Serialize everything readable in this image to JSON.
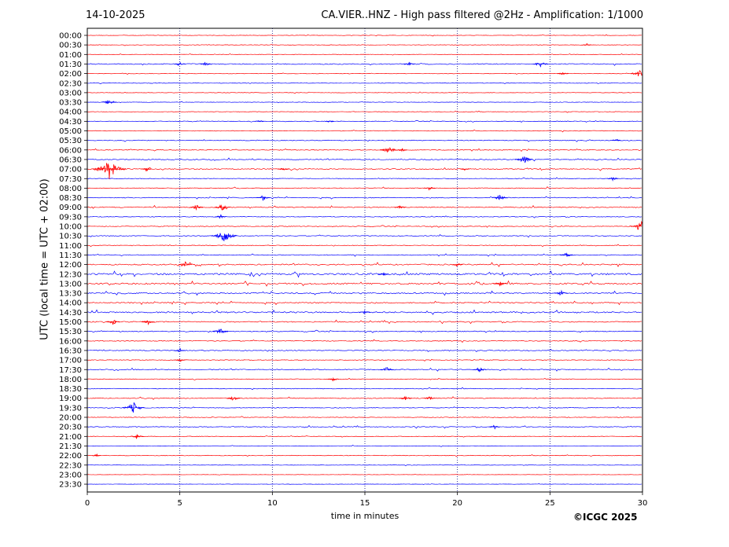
{
  "header": {
    "date": "14-10-2025",
    "title": "CA.VIER..HNZ - High pass filtered @2Hz - Amplification: 1/1000"
  },
  "footer": {
    "copyright": "©ICGC 2025"
  },
  "colors": {
    "trace_a": "#ff0000",
    "trace_b": "#0000ff",
    "grid": "#000080",
    "axis": "#000000"
  },
  "chart_data": {
    "type": "line",
    "xlabel": "time in minutes",
    "ylabel": "UTC (local time = UTC + 02:00)",
    "xlim": [
      0,
      30
    ],
    "xticks": [
      0,
      5,
      10,
      15,
      20,
      25,
      30
    ],
    "grid": "vertical dotted at each x tick",
    "rows": [
      "00:00",
      "00:30",
      "01:00",
      "01:30",
      "02:00",
      "02:30",
      "03:00",
      "03:30",
      "04:00",
      "04:30",
      "05:00",
      "05:30",
      "06:00",
      "06:30",
      "07:00",
      "07:30",
      "08:00",
      "08:30",
      "09:00",
      "09:30",
      "10:00",
      "10:30",
      "11:00",
      "11:30",
      "12:00",
      "12:30",
      "13:00",
      "13:30",
      "14:00",
      "14:30",
      "15:00",
      "15:30",
      "16:00",
      "16:30",
      "17:00",
      "17:30",
      "18:00",
      "18:30",
      "19:00",
      "19:30",
      "20:00",
      "20:30",
      "21:00",
      "21:30",
      "22:00",
      "22:30",
      "23:00",
      "23:30"
    ],
    "row_colors": [
      "red",
      "red",
      "red",
      "blue",
      "red",
      "blue",
      "red",
      "blue",
      "red",
      "blue",
      "red",
      "blue",
      "red",
      "blue",
      "red",
      "blue",
      "red",
      "blue",
      "red",
      "blue",
      "red",
      "blue",
      "red",
      "blue",
      "red",
      "blue",
      "red",
      "blue",
      "red",
      "blue",
      "red",
      "blue",
      "red",
      "blue",
      "red",
      "blue",
      "red",
      "blue",
      "red",
      "blue",
      "red",
      "blue",
      "red",
      "blue",
      "red",
      "blue",
      "red",
      "blue"
    ],
    "noise_level": [
      0.6,
      0.6,
      0.6,
      1.2,
      0.7,
      0.6,
      0.6,
      0.6,
      0.6,
      0.8,
      0.8,
      1,
      1,
      1.1,
      1.2,
      0.8,
      1,
      1,
      1.3,
      0.8,
      0.9,
      1,
      0.9,
      1,
      1.5,
      2.2,
      2,
      1.6,
      1.4,
      1.8,
      1.3,
      1.1,
      1,
      1,
      0.8,
      1.1,
      0.8,
      0.9,
      1.1,
      0.8,
      0.8,
      1,
      0.7,
      0.6,
      0.8,
      0.5,
      0.4,
      0.4
    ],
    "events": [
      {
        "row": "00:30",
        "minute": 27.0,
        "amplitude": 2
      },
      {
        "row": "01:30",
        "minute": 5.0,
        "amplitude": 3
      },
      {
        "row": "01:30",
        "minute": 6.4,
        "amplitude": 3
      },
      {
        "row": "01:30",
        "minute": 17.4,
        "amplitude": 3
      },
      {
        "row": "01:30",
        "minute": 24.5,
        "amplitude": 5
      },
      {
        "row": "02:00",
        "minute": 25.7,
        "amplitude": 3
      },
      {
        "row": "02:00",
        "minute": 29.9,
        "amplitude": 7
      },
      {
        "row": "03:30",
        "minute": 1.2,
        "amplitude": 5
      },
      {
        "row": "04:30",
        "minute": 9.3,
        "amplitude": 2
      },
      {
        "row": "04:30",
        "minute": 13.1,
        "amplitude": 2
      },
      {
        "row": "05:30",
        "minute": 28.6,
        "amplitude": 2
      },
      {
        "row": "06:00",
        "minute": 16.3,
        "amplitude": 6
      },
      {
        "row": "06:00",
        "minute": 17.0,
        "amplitude": 3
      },
      {
        "row": "06:30",
        "minute": 23.6,
        "amplitude": 6
      },
      {
        "row": "07:00",
        "minute": 1.2,
        "amplitude": 13
      },
      {
        "row": "07:00",
        "minute": 3.2,
        "amplitude": 3
      },
      {
        "row": "07:00",
        "minute": 10.6,
        "amplitude": 3
      },
      {
        "row": "07:00",
        "minute": 20.4,
        "amplitude": 2
      },
      {
        "row": "07:30",
        "minute": 28.4,
        "amplitude": 3
      },
      {
        "row": "08:00",
        "minute": 18.5,
        "amplitude": 3
      },
      {
        "row": "08:30",
        "minute": 9.5,
        "amplitude": 4
      },
      {
        "row": "08:30",
        "minute": 22.3,
        "amplitude": 5
      },
      {
        "row": "09:00",
        "minute": 5.9,
        "amplitude": 4
      },
      {
        "row": "09:00",
        "minute": 7.3,
        "amplitude": 5
      },
      {
        "row": "09:00",
        "minute": 16.9,
        "amplitude": 3
      },
      {
        "row": "09:30",
        "minute": 7.2,
        "amplitude": 3
      },
      {
        "row": "10:00",
        "minute": 29.9,
        "amplitude": 8
      },
      {
        "row": "10:30",
        "minute": 7.4,
        "amplitude": 10
      },
      {
        "row": "11:30",
        "minute": 25.9,
        "amplitude": 4
      },
      {
        "row": "12:00",
        "minute": 5.3,
        "amplitude": 4
      },
      {
        "row": "12:00",
        "minute": 20.0,
        "amplitude": 3
      },
      {
        "row": "12:30",
        "minute": 16.0,
        "amplitude": 3
      },
      {
        "row": "13:00",
        "minute": 22.3,
        "amplitude": 4
      },
      {
        "row": "13:30",
        "minute": 25.6,
        "amplitude": 4
      },
      {
        "row": "14:30",
        "minute": 15.0,
        "amplitude": 3
      },
      {
        "row": "15:00",
        "minute": 1.4,
        "amplitude": 4
      },
      {
        "row": "15:00",
        "minute": 3.3,
        "amplitude": 4
      },
      {
        "row": "15:30",
        "minute": 7.2,
        "amplitude": 5
      },
      {
        "row": "16:30",
        "minute": 5.0,
        "amplitude": 3
      },
      {
        "row": "17:00",
        "minute": 5.0,
        "amplitude": 3
      },
      {
        "row": "17:30",
        "minute": 16.2,
        "amplitude": 4
      },
      {
        "row": "17:30",
        "minute": 21.2,
        "amplitude": 4
      },
      {
        "row": "18:00",
        "minute": 13.3,
        "amplitude": 3
      },
      {
        "row": "19:00",
        "minute": 7.9,
        "amplitude": 4
      },
      {
        "row": "19:00",
        "minute": 17.2,
        "amplitude": 4
      },
      {
        "row": "19:00",
        "minute": 18.5,
        "amplitude": 3
      },
      {
        "row": "19:30",
        "minute": 2.5,
        "amplitude": 8
      },
      {
        "row": "20:30",
        "minute": 22.0,
        "amplitude": 3
      },
      {
        "row": "21:00",
        "minute": 2.7,
        "amplitude": 4
      },
      {
        "row": "22:00",
        "minute": 0.5,
        "amplitude": 2
      }
    ]
  }
}
